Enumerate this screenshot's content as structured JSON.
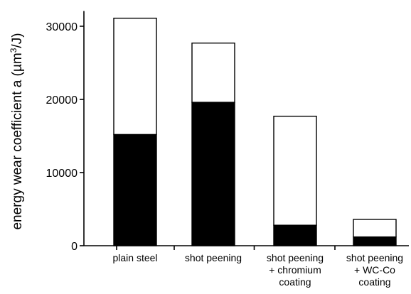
{
  "chart_data": {
    "type": "bar",
    "stacked": true,
    "categories": [
      [
        "plain steel"
      ],
      [
        "shot peening"
      ],
      [
        "shot peening",
        "+ chromium",
        "coating"
      ],
      [
        "shot peening",
        "+ WC-Co",
        "coating"
      ]
    ],
    "series": [
      {
        "values": [
          15200,
          19600,
          2800,
          1200
        ],
        "color": "#000000"
      },
      {
        "values": [
          15900,
          8100,
          14900,
          2400
        ],
        "color": "#ffffff"
      }
    ],
    "totals": [
      31100,
      27700,
      17700,
      3600
    ],
    "ylabel_parts": [
      "energy wear coefficient a (µm",
      "3",
      "/J)"
    ],
    "ylim": [
      0,
      31500
    ],
    "yticks": [
      0,
      10000,
      20000,
      30000
    ],
    "grid": false,
    "legend": "none"
  }
}
